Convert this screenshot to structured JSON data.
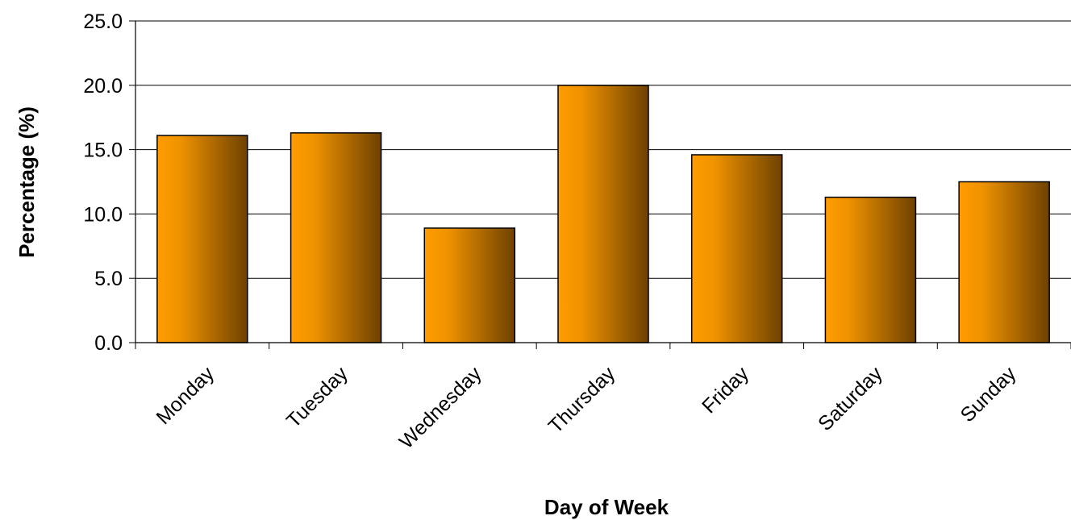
{
  "chart_data": {
    "type": "bar",
    "title": "",
    "xlabel": "Day of Week",
    "ylabel": "Percentage (%)",
    "categories": [
      "Monday",
      "Tuesday",
      "Wednesday",
      "Thursday",
      "Friday",
      "Saturday",
      "Sunday"
    ],
    "values": [
      16.1,
      16.3,
      8.9,
      20.0,
      14.6,
      11.3,
      12.5
    ],
    "ylim": [
      0,
      25
    ],
    "yticks": [
      "0.0",
      "5.0",
      "10.0",
      "15.0",
      "20.0",
      "25.0"
    ],
    "grid": true,
    "bar_gradient": [
      "#ff9c00",
      "#6e4100"
    ]
  }
}
